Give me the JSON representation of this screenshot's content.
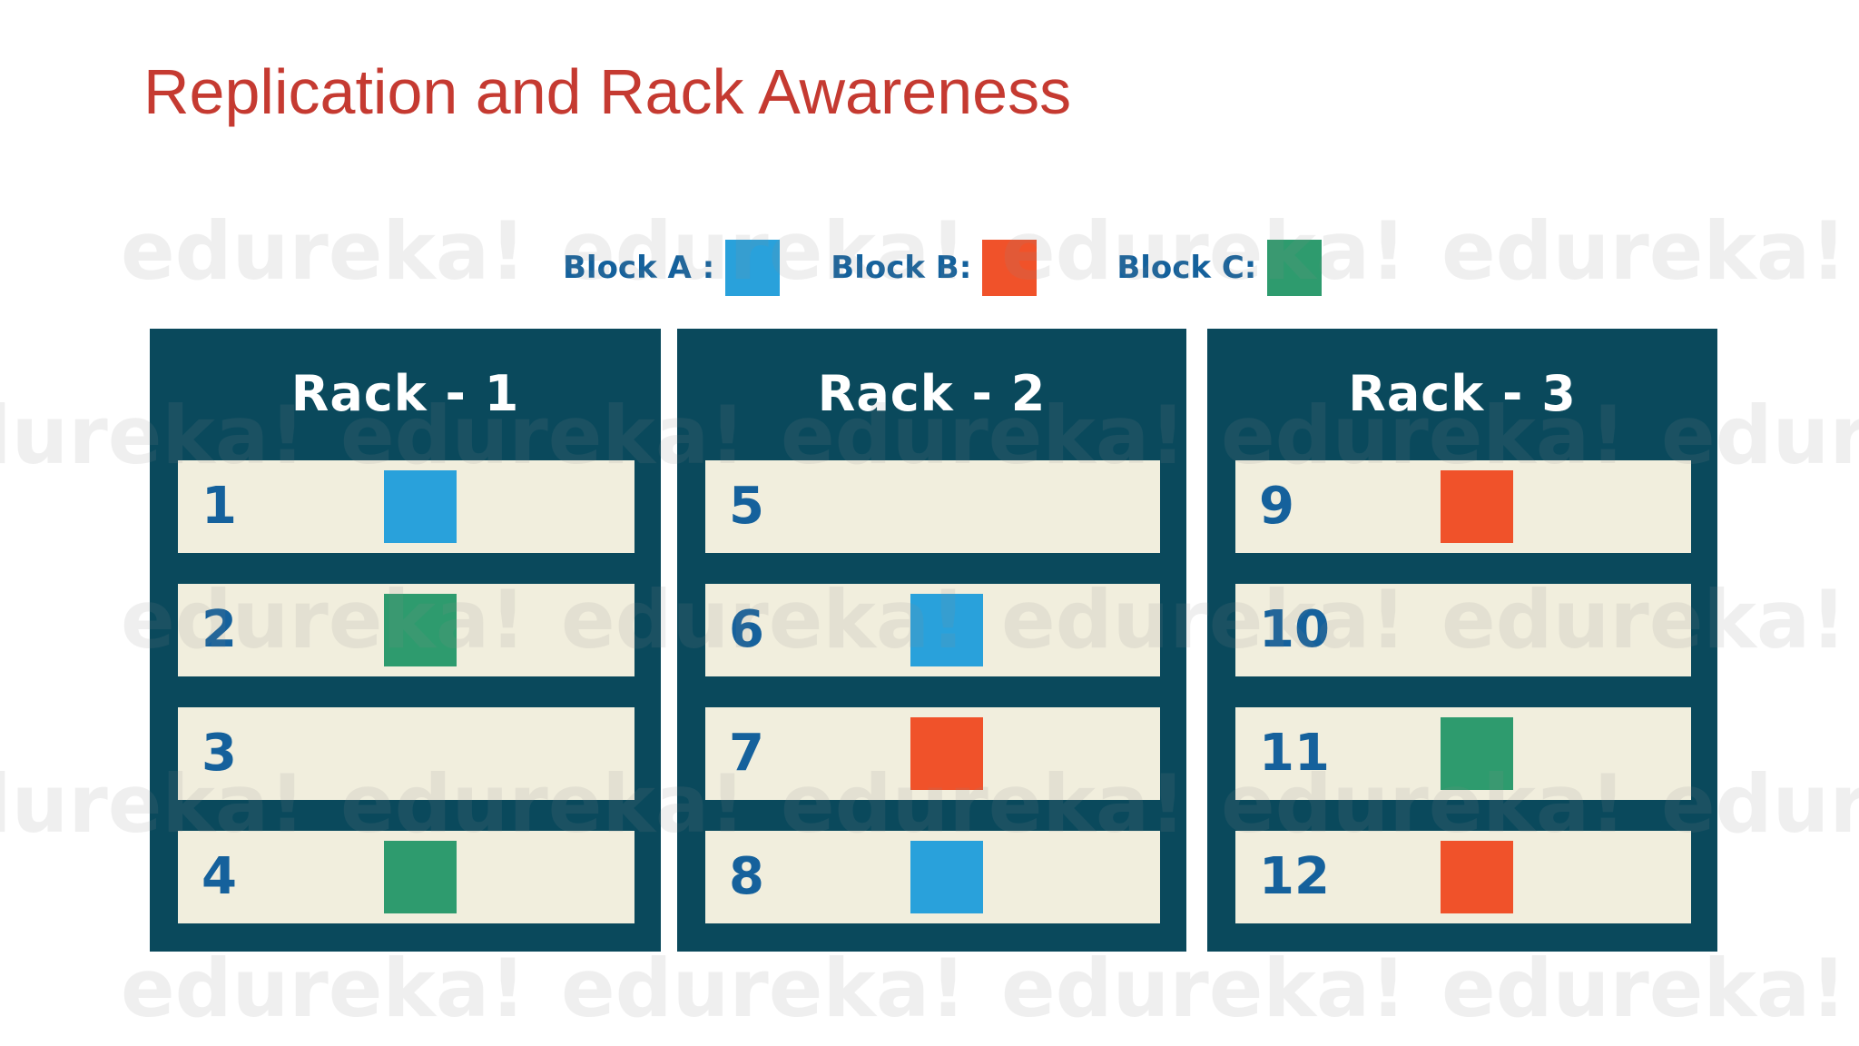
{
  "title": {
    "text": "Replication and Rack Awareness",
    "color": "#c53a31"
  },
  "legend": {
    "items": [
      {
        "label": "Block A :",
        "block": "A"
      },
      {
        "label": "Block B:",
        "block": "B"
      },
      {
        "label": "Block C:",
        "block": "C"
      }
    ]
  },
  "block_colors": {
    "A": "#29a1db",
    "B": "#f0522a",
    "C": "#2e9b6e"
  },
  "racks": [
    {
      "name": "Rack - 1",
      "nodes": [
        {
          "id": "1",
          "block": "A"
        },
        {
          "id": "2",
          "block": "C"
        },
        {
          "id": "3",
          "block": null
        },
        {
          "id": "4",
          "block": "C"
        }
      ]
    },
    {
      "name": "Rack - 2",
      "nodes": [
        {
          "id": "5",
          "block": null
        },
        {
          "id": "6",
          "block": "A"
        },
        {
          "id": "7",
          "block": "B"
        },
        {
          "id": "8",
          "block": "A"
        }
      ]
    },
    {
      "name": "Rack - 3",
      "nodes": [
        {
          "id": "9",
          "block": "B"
        },
        {
          "id": "10",
          "block": null
        },
        {
          "id": "11",
          "block": "C"
        },
        {
          "id": "12",
          "block": "B"
        }
      ]
    }
  ],
  "watermark": {
    "text": "edureka!"
  },
  "colors": {
    "rack_panel_teal": "#0a495c",
    "row_cream": "#f1eedd",
    "number_blue": "#15619c",
    "legend_text_blue": "#14619c",
    "rack_title_white": "#ffffff",
    "watermark_gray": "#8c8c8c",
    "background": "#ffffff"
  }
}
